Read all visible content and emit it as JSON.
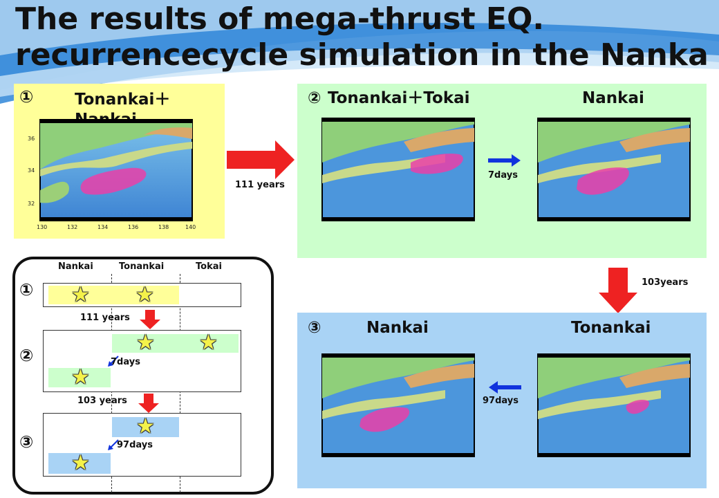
{
  "title": {
    "line1": "The results of mega-thrust EQ.",
    "line2": "recurrencecycle simulation in the Nanka"
  },
  "panel1": {
    "num": "①",
    "label": "Tonankai＋Nankai",
    "map_y_ticks": [
      "36",
      "34",
      "32"
    ],
    "map_x_ticks": [
      "130",
      "132",
      "134",
      "136",
      "138",
      "140"
    ]
  },
  "panel2": {
    "num": "②",
    "label_left": "Tonankai＋Tokai",
    "label_right": "Nankai",
    "arrow_label": "7days"
  },
  "panel3": {
    "num": "③",
    "label_left": "Nankai",
    "label_right": "Tonankai",
    "arrow_label": "97days"
  },
  "arrows": {
    "p1_to_p2": "111 years",
    "p2_to_p3": "103years"
  },
  "schematic": {
    "columns": [
      "Nankai",
      "Tonankai",
      "Tokai"
    ],
    "rows": [
      "①",
      "②",
      "③"
    ],
    "gap1": "111 years",
    "gap2": "103 years",
    "row2_delay": "7days",
    "row3_delay": "97days"
  },
  "colors": {
    "panel1_bg": "#ffff99",
    "panel2_bg": "#ccffcc",
    "panel3_bg": "#a9d3f5",
    "big_arrow": "#ee2222",
    "small_arrow": "#1133dd",
    "star": "#f4f24a"
  }
}
